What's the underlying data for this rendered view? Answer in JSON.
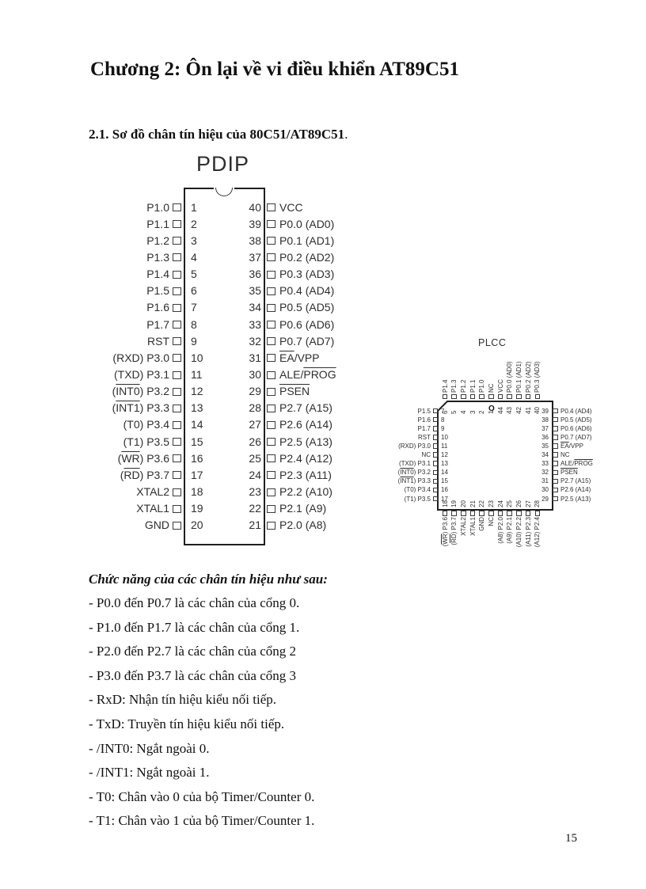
{
  "title": "Chương 2: Ôn lại về vi điều khiển AT89C51",
  "section_heading": "2.1. Sơ đồ chân tín hiệu của 80C51/AT89C51",
  "section_heading_period": ".",
  "pdip": {
    "label": "PDIP",
    "left_pins": [
      {
        "num": 1,
        "label": "P1.0"
      },
      {
        "num": 2,
        "label": "P1.1"
      },
      {
        "num": 3,
        "label": "P1.2"
      },
      {
        "num": 4,
        "label": "P1.3"
      },
      {
        "num": 5,
        "label": "P1.4"
      },
      {
        "num": 6,
        "label": "P1.5"
      },
      {
        "num": 7,
        "label": "P1.6"
      },
      {
        "num": 8,
        "label": "P1.7"
      },
      {
        "num": 9,
        "label": "RST"
      },
      {
        "num": 10,
        "label": "(RXD) P3.0"
      },
      {
        "num": 11,
        "label": "(TXD) P3.1"
      },
      {
        "num": 12,
        "label": [
          [
            "(",
            0
          ],
          [
            "INT0",
            1
          ],
          [
            ") P3.2",
            0
          ]
        ]
      },
      {
        "num": 13,
        "label": [
          [
            "(",
            0
          ],
          [
            "INT1",
            1
          ],
          [
            ") P3.3",
            0
          ]
        ]
      },
      {
        "num": 14,
        "label": "(T0) P3.4"
      },
      {
        "num": 15,
        "label": "(T1) P3.5"
      },
      {
        "num": 16,
        "label": [
          [
            "(",
            0
          ],
          [
            "WR",
            1
          ],
          [
            ") P3.6",
            0
          ]
        ]
      },
      {
        "num": 17,
        "label": [
          [
            "(",
            0
          ],
          [
            "RD",
            1
          ],
          [
            ") P3.7",
            0
          ]
        ]
      },
      {
        "num": 18,
        "label": "XTAL2"
      },
      {
        "num": 19,
        "label": "XTAL1"
      },
      {
        "num": 20,
        "label": "GND"
      }
    ],
    "right_pins": [
      {
        "num": 40,
        "label": "VCC"
      },
      {
        "num": 39,
        "label": "P0.0 (AD0)"
      },
      {
        "num": 38,
        "label": "P0.1 (AD1)"
      },
      {
        "num": 37,
        "label": "P0.2 (AD2)"
      },
      {
        "num": 36,
        "label": "P0.3 (AD3)"
      },
      {
        "num": 35,
        "label": "P0.4 (AD4)"
      },
      {
        "num": 34,
        "label": "P0.5 (AD5)"
      },
      {
        "num": 33,
        "label": "P0.6 (AD6)"
      },
      {
        "num": 32,
        "label": "P0.7 (AD7)"
      },
      {
        "num": 31,
        "label": [
          [
            "EA",
            1
          ],
          [
            "/VPP",
            0
          ]
        ]
      },
      {
        "num": 30,
        "label": [
          [
            "ALE/",
            0
          ],
          [
            "PROG",
            1
          ]
        ]
      },
      {
        "num": 29,
        "label": [
          [
            "PSEN",
            1
          ]
        ]
      },
      {
        "num": 28,
        "label": "P2.7 (A15)"
      },
      {
        "num": 27,
        "label": "P2.6 (A14)"
      },
      {
        "num": 26,
        "label": "P2.5 (A13)"
      },
      {
        "num": 25,
        "label": "P2.4 (A12)"
      },
      {
        "num": 24,
        "label": "P2.3 (A11)"
      },
      {
        "num": 23,
        "label": "P2.2 (A10)"
      },
      {
        "num": 22,
        "label": "P2.1 (A9)"
      },
      {
        "num": 21,
        "label": "P2.0 (A8)"
      }
    ]
  },
  "plcc": {
    "label": "PLCC",
    "pin1_marker": "O",
    "top_pins": [
      {
        "num": 6,
        "label": "P1.4"
      },
      {
        "num": 5,
        "label": "P1.3"
      },
      {
        "num": 4,
        "label": "P1.2"
      },
      {
        "num": 3,
        "label": "P1.1"
      },
      {
        "num": 2,
        "label": "P1.0"
      },
      {
        "num": 1,
        "label": "NC"
      },
      {
        "num": 44,
        "label": "VCC"
      },
      {
        "num": 43,
        "label": "P0.0 (AD0)"
      },
      {
        "num": 42,
        "label": "P0.1 (AD1)"
      },
      {
        "num": 41,
        "label": "P0.2 (AD2)"
      },
      {
        "num": 40,
        "label": "P0.3 (AD3)"
      }
    ],
    "left_pins": [
      {
        "num": 7,
        "label": "P1.5"
      },
      {
        "num": 8,
        "label": "P1.6"
      },
      {
        "num": 9,
        "label": "P1.7"
      },
      {
        "num": 10,
        "label": "RST"
      },
      {
        "num": 11,
        "label": "(RXD) P3.0"
      },
      {
        "num": 12,
        "label": "NC"
      },
      {
        "num": 13,
        "label": "(TXD) P3.1"
      },
      {
        "num": 14,
        "label": [
          [
            "(",
            0
          ],
          [
            "INT0",
            1
          ],
          [
            ") P3.2",
            0
          ]
        ]
      },
      {
        "num": 15,
        "label": [
          [
            "(",
            0
          ],
          [
            "INT1",
            1
          ],
          [
            ") P3.3",
            0
          ]
        ]
      },
      {
        "num": 16,
        "label": "(T0) P3.4"
      },
      {
        "num": 17,
        "label": "(T1) P3.5"
      }
    ],
    "right_pins": [
      {
        "num": 39,
        "label": "P0.4 (AD4)"
      },
      {
        "num": 38,
        "label": "P0.5 (AD5)"
      },
      {
        "num": 37,
        "label": "P0.6 (AD6)"
      },
      {
        "num": 36,
        "label": "P0.7 (AD7)"
      },
      {
        "num": 35,
        "label": [
          [
            "EA",
            1
          ],
          [
            "/VPP",
            0
          ]
        ]
      },
      {
        "num": 34,
        "label": "NC"
      },
      {
        "num": 33,
        "label": [
          [
            "ALE/",
            0
          ],
          [
            "PROG",
            1
          ]
        ]
      },
      {
        "num": 32,
        "label": [
          [
            "PSEN",
            1
          ]
        ]
      },
      {
        "num": 31,
        "label": "P2.7 (A15)"
      },
      {
        "num": 30,
        "label": "P2.6 (A14)"
      },
      {
        "num": 29,
        "label": "P2.5 (A13)"
      }
    ],
    "bottom_pins": [
      {
        "num": 18,
        "label": [
          [
            "(",
            0
          ],
          [
            "WR",
            1
          ],
          [
            ") P3.6",
            0
          ]
        ]
      },
      {
        "num": 19,
        "label": [
          [
            "(",
            0
          ],
          [
            "RD",
            1
          ],
          [
            ") P3.7",
            0
          ]
        ]
      },
      {
        "num": 20,
        "label": "XTAL2"
      },
      {
        "num": 21,
        "label": "XTAL1"
      },
      {
        "num": 22,
        "label": "GND"
      },
      {
        "num": 23,
        "label": "NC"
      },
      {
        "num": 24,
        "label": "(A8) P2.0"
      },
      {
        "num": 25,
        "label": "(A9) P2.1"
      },
      {
        "num": 26,
        "label": "(A10) P2.2"
      },
      {
        "num": 27,
        "label": "(A11) P2.3"
      },
      {
        "num": 28,
        "label": "(A12) P2.4"
      }
    ]
  },
  "functions": {
    "heading": "Chức năng của các chân tín hiệu như sau:",
    "items": [
      "- P0.0 đến P0.7 là các chân của cổng 0.",
      "- P1.0 đến P1.7 là các chân của cổng 1.",
      "- P2.0 đến P2.7 là các chân của cổng 2",
      "- P3.0 đến P3.7 là các chân của cổng 3",
      "- RxD: Nhận tín hiệu kiểu nối tiếp.",
      "- TxD: Truyền tín hiệu kiểu nối tiếp.",
      "- /INT0: Ngắt ngoài 0.",
      "- /INT1: Ngắt ngoài 1.",
      "- T0: Chân vào 0 của bộ Timer/Counter 0.",
      "- T1: Chân vào 1 của bộ Timer/Counter 1."
    ]
  },
  "page": {
    "number": "15"
  }
}
